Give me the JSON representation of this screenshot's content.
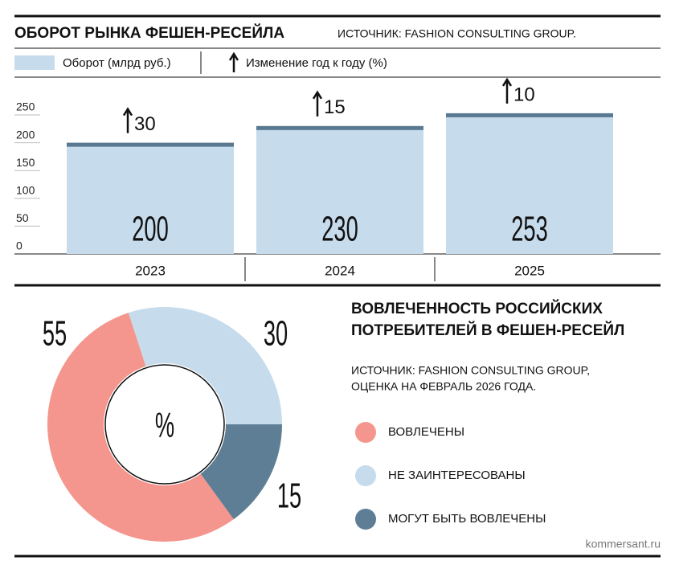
{
  "chart_data": [
    {
      "type": "bar",
      "title": "ОБОРОТ РЫНКА ФЕШЕН-РЕСЕЙЛА",
      "source": "ИСТОЧНИК: FASHION CONSULTING GROUP.",
      "categories": [
        "2023",
        "2024",
        "2025"
      ],
      "series": [
        {
          "name": "Оборот (млрд руб.)",
          "color": "#c6dbec",
          "values": [
            200,
            230,
            253
          ]
        },
        {
          "name": "Изменение год к году (%)",
          "color": "#111111",
          "values": [
            30,
            15,
            10
          ]
        }
      ],
      "cap_color": "#5a7990",
      "ylim": [
        0,
        250
      ],
      "yticks": [
        0,
        50,
        100,
        150,
        200,
        250
      ]
    },
    {
      "type": "donut",
      "title": [
        "ВОВЛЕЧЕННОСТЬ РОССИЙСКИХ",
        "ПОТРЕБИТЕЛЕЙ В ФЕШЕН-РЕСЕЙЛ"
      ],
      "source": [
        "ИСТОЧНИК: FASHION CONSULTING GROUP,",
        "ОЦЕНКА НА ФЕВРАЛЬ 2026 ГОДА."
      ],
      "center_label": "%",
      "categories": [
        "ВОВЛЕЧЕНЫ",
        "НЕ ЗАИНТЕРЕСОВАНЫ",
        "МОГУТ БЫТЬ ВОВЛЕЧЕНЫ"
      ],
      "values": [
        55,
        30,
        15
      ],
      "colors": [
        "#f4968d",
        "#c6dbec",
        "#5e7e96"
      ]
    }
  ],
  "footer": {
    "site": "kommersant.ru"
  }
}
